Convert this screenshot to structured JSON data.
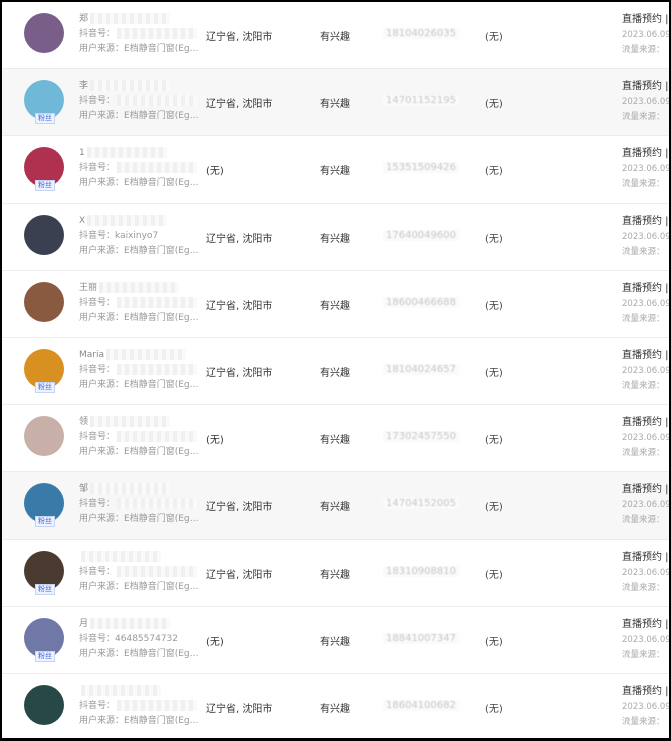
{
  "common": {
    "douyin_label": "抖音号：",
    "source_label": "用户来源：",
    "source_value": "E档静音门窗(Ege...",
    "fan_badge": "粉丝",
    "interest": "有兴趣",
    "action_type": "直播预约 |",
    "date": "2023.06.09 1",
    "flow_label": "流量来源："
  },
  "rows": [
    {
      "name": "郑",
      "douyin": "",
      "location": "辽宁省, 沈阳市",
      "phone": "18104026035",
      "note": "(无)",
      "fan": false,
      "highlight": false,
      "avatar_color": "#7a5e8a"
    },
    {
      "name": "李",
      "douyin": "",
      "location": "辽宁省, 沈阳市",
      "phone": "14701152195",
      "note": "(无)",
      "fan": true,
      "highlight": true,
      "avatar_color": "#6fb8d8"
    },
    {
      "name": "1",
      "douyin": "",
      "location": "(无)",
      "phone": "15351509426",
      "note": "(无)",
      "fan": true,
      "highlight": false,
      "avatar_color": "#b03050"
    },
    {
      "name": "X",
      "douyin": "kaixinyo7",
      "location": "辽宁省, 沈阳市",
      "phone": "17640049600",
      "note": "(无)",
      "fan": false,
      "highlight": false,
      "avatar_color": "#3a4050"
    },
    {
      "name": "王丽",
      "douyin": "",
      "location": "辽宁省, 沈阳市",
      "phone": "18600466688",
      "note": "(无)",
      "fan": false,
      "highlight": false,
      "avatar_color": "#8a5a40"
    },
    {
      "name": "Maria",
      "douyin": "",
      "location": "辽宁省, 沈阳市",
      "phone": "18104024657",
      "note": "(无)",
      "fan": true,
      "highlight": false,
      "avatar_color": "#d89020"
    },
    {
      "name": "领",
      "douyin": "",
      "location": "(无)",
      "phone": "17302457550",
      "note": "(无)",
      "fan": false,
      "highlight": false,
      "avatar_color": "#c8b0a8"
    },
    {
      "name": "邹",
      "douyin": "",
      "location": "辽宁省, 沈阳市",
      "phone": "14704152005",
      "note": "(无)",
      "fan": true,
      "highlight": true,
      "avatar_color": "#3a7aa8"
    },
    {
      "name": "",
      "douyin": "",
      "location": "辽宁省, 沈阳市",
      "phone": "18310908810",
      "note": "(无)",
      "fan": true,
      "highlight": false,
      "avatar_color": "#4a3a30"
    },
    {
      "name": "月",
      "douyin": "46485574732",
      "location": "(无)",
      "phone": "18841007347",
      "note": "(无)",
      "fan": true,
      "highlight": false,
      "avatar_color": "#7078a8"
    },
    {
      "name": "",
      "douyin": "",
      "location": "辽宁省, 沈阳市",
      "phone": "18604100682",
      "note": "(无)",
      "fan": false,
      "highlight": false,
      "avatar_color": "#284848"
    }
  ]
}
